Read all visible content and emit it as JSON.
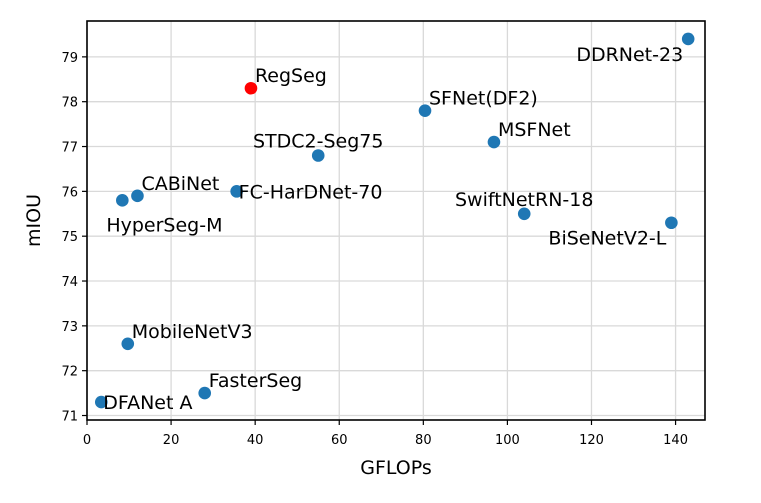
{
  "chart_data": {
    "type": "scatter",
    "title": "",
    "xlabel": "GFLOPs",
    "ylabel": "mIOU",
    "xlim": [
      0,
      147
    ],
    "ylim": [
      70.9,
      79.8
    ],
    "xticks": [
      0,
      20,
      40,
      60,
      80,
      100,
      120,
      140
    ],
    "yticks": [
      71,
      72,
      73,
      74,
      75,
      76,
      77,
      78,
      79
    ],
    "grid": true,
    "points": [
      {
        "name": "DDRNet-23",
        "x": 143,
        "y": 79.4,
        "color": "#1f77b4",
        "label_pos": "left-below"
      },
      {
        "name": "RegSeg",
        "x": 39,
        "y": 78.3,
        "color": "#ff0000",
        "label_pos": "right-above"
      },
      {
        "name": "SFNet(DF2)",
        "x": 80.4,
        "y": 77.8,
        "color": "#1f77b4",
        "label_pos": "right-above"
      },
      {
        "name": "MSFNet",
        "x": 96.8,
        "y": 77.1,
        "color": "#1f77b4",
        "label_pos": "right-above"
      },
      {
        "name": "STDC2-Seg75",
        "x": 55,
        "y": 76.8,
        "color": "#1f77b4",
        "label_pos": "center-above"
      },
      {
        "name": "FC-HarDNet-70",
        "x": 35.6,
        "y": 76.0,
        "color": "#1f77b4",
        "label_pos": "right-center"
      },
      {
        "name": "CABiNet",
        "x": 12,
        "y": 75.9,
        "color": "#1f77b4",
        "label_pos": "right-above"
      },
      {
        "name": "HyperSeg-M",
        "x": 8.4,
        "y": 75.8,
        "color": "#1f77b4",
        "label_pos": "right-below"
      },
      {
        "name": "SwiftNetRN-18",
        "x": 104,
        "y": 75.5,
        "color": "#1f77b4",
        "label_pos": "center-above"
      },
      {
        "name": "BiSeNetV2-L",
        "x": 139,
        "y": 75.3,
        "color": "#1f77b4",
        "label_pos": "left-below"
      },
      {
        "name": "MobileNetV3",
        "x": 9.7,
        "y": 72.6,
        "color": "#1f77b4",
        "label_pos": "right-above"
      },
      {
        "name": "FasterSeg",
        "x": 28,
        "y": 71.5,
        "color": "#1f77b4",
        "label_pos": "right-above"
      },
      {
        "name": "DFANet A",
        "x": 3.4,
        "y": 71.3,
        "color": "#1f77b4",
        "label_pos": "right-center"
      }
    ]
  }
}
